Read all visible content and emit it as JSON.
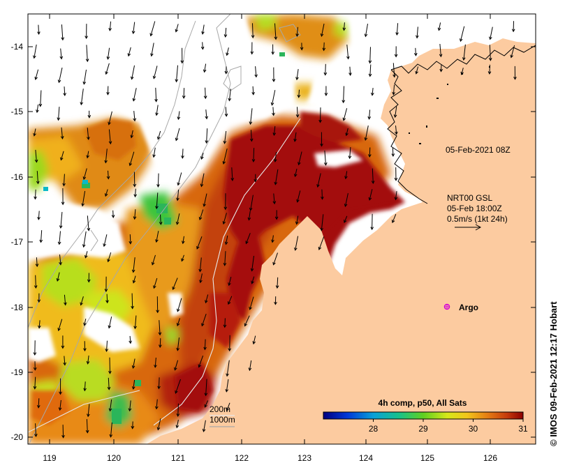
{
  "map": {
    "title_timestamp": "05-Feb-2021 08Z",
    "current_source": "NRT00 GSL",
    "current_time": "05-Feb 18:00Z",
    "vector_scale": "0.5m/s (1kt 24h)",
    "argo_label": "Argo",
    "isobath_200": "200m",
    "isobath_1000": "1000m",
    "credit": "© IMOS 09-Feb-2021 12:17 Hobart",
    "colorbar": {
      "title": "4h comp, p50, All Sats",
      "min": 27,
      "max": 31,
      "ticks": [
        "28",
        "29",
        "30",
        "31"
      ]
    },
    "lon_ticks": [
      "119",
      "120",
      "121",
      "122",
      "123",
      "124",
      "125",
      "126"
    ],
    "lat_ticks": [
      "-14",
      "-15",
      "-16",
      "-17",
      "-18",
      "-19",
      "-20"
    ],
    "colors": {
      "land": "#fccba0",
      "sst_hot": "#a30d0d",
      "sst_warm": "#d8600e",
      "sst_mid": "#eaa417",
      "sst_cool": "#c8e21c",
      "sst_cold": "#20bb4e"
    }
  }
}
